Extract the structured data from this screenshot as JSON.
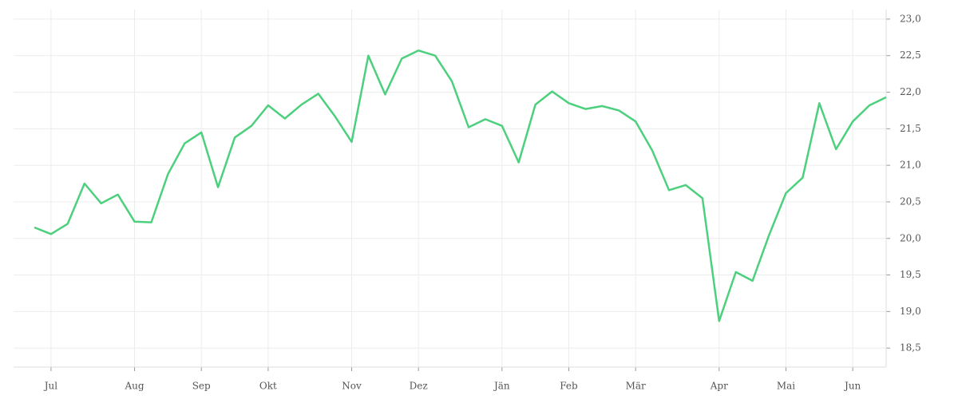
{
  "chart_data": {
    "type": "line",
    "categories": [
      null,
      "Jul",
      null,
      null,
      null,
      null,
      "Aug",
      null,
      null,
      null,
      "Sep",
      null,
      null,
      null,
      "Okt",
      null,
      null,
      null,
      null,
      "Nov",
      null,
      null,
      null,
      "Dez",
      null,
      null,
      null,
      null,
      "Jän",
      null,
      null,
      null,
      "Feb",
      null,
      null,
      null,
      "Mär",
      null,
      null,
      null,
      null,
      "Apr",
      null,
      null,
      null,
      "Mai",
      null,
      null,
      null,
      "Jun",
      null,
      null
    ],
    "series": [
      {
        "color": "#4cd07d",
        "values": [
          20.15,
          20.06,
          20.2,
          20.75,
          20.48,
          20.6,
          20.23,
          20.22,
          20.88,
          21.3,
          21.45,
          20.7,
          21.38,
          21.54,
          21.82,
          21.64,
          21.83,
          21.98,
          21.67,
          21.32,
          22.5,
          21.97,
          22.46,
          22.57,
          22.5,
          22.15,
          21.52,
          21.63,
          21.54,
          21.04,
          21.83,
          22.01,
          21.85,
          21.77,
          21.81,
          21.75,
          21.6,
          21.2,
          20.66,
          20.73,
          20.55,
          18.87,
          19.54,
          19.42,
          20.05,
          20.62,
          20.83,
          21.85,
          21.22,
          21.6,
          21.82,
          21.93
        ]
      }
    ],
    "ylim": [
      18.24,
      23.13
    ],
    "yticks": [
      {
        "value": 18.5,
        "label": "18,5"
      },
      {
        "value": 19,
        "label": "19,0"
      },
      {
        "value": 19.5,
        "label": "19,5"
      },
      {
        "value": 20,
        "label": "20,0"
      },
      {
        "value": 20.5,
        "label": "20,5"
      },
      {
        "value": 21,
        "label": "21,0"
      },
      {
        "value": 21.5,
        "label": "21,5"
      },
      {
        "value": 22,
        "label": "22,0"
      },
      {
        "value": 22.5,
        "label": "22,5"
      },
      {
        "value": 23,
        "label": "23,0"
      }
    ],
    "grid": true
  }
}
